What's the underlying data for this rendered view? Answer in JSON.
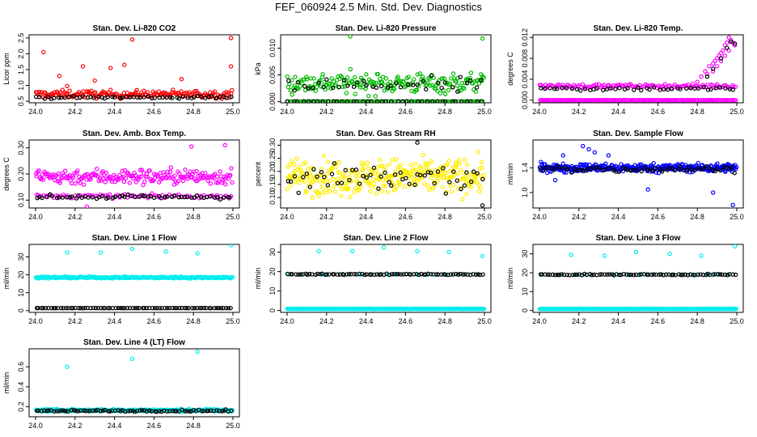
{
  "page_title": "FEF_060924  2.5 Min. Std. Dev. Diagnostics",
  "chart_data": [
    {
      "type": "scatter",
      "title": "Stan. Dev. Li-820 CO2",
      "ylabel": "Licor ppm",
      "xlim": [
        24.0,
        25.0
      ],
      "ylim": [
        0.45,
        2.6
      ],
      "xticks": [
        24.0,
        24.2,
        24.4,
        24.6,
        24.8,
        25.0
      ],
      "xtick_labels": [
        "24.0",
        "24.2",
        "24.4",
        "24.6",
        "24.8",
        "25.0"
      ],
      "yticks": [
        0.5,
        1.0,
        1.5,
        2.0,
        2.5
      ],
      "ytick_labels": [
        "0.5",
        "1.0",
        "1.5",
        "2.0",
        "2.5"
      ],
      "series": [
        {
          "name": "red",
          "color": "#ff0000",
          "base": 0.72,
          "spread": 0.2,
          "n": 170,
          "extra_x": [
            24.04,
            24.16,
            24.24,
            24.3,
            24.38,
            24.45,
            24.49,
            24.74,
            24.99,
            24.99,
            24.12
          ],
          "extra_y": [
            2.05,
            0.98,
            1.6,
            1.15,
            1.55,
            1.65,
            2.45,
            1.2,
            2.5,
            1.6,
            1.3
          ]
        },
        {
          "name": "black",
          "color": "#000000",
          "base": 0.62,
          "spread": 0.07,
          "n": 55,
          "extra_x": [],
          "extra_y": []
        }
      ]
    },
    {
      "type": "scatter",
      "title": "Stan. Dev. Li-820 Pressure",
      "ylabel": "kPa",
      "xlim": [
        24.0,
        25.0
      ],
      "ylim": [
        -0.0002,
        0.0125
      ],
      "xticks": [
        24.0,
        24.2,
        24.4,
        24.6,
        24.8,
        25.0
      ],
      "xtick_labels": [
        "24.0",
        "24.2",
        "24.4",
        "24.6",
        "24.8",
        "25.0"
      ],
      "yticks": [
        0.0,
        0.005,
        0.01
      ],
      "ytick_labels": [
        "0.000",
        "0.005",
        "0.010"
      ],
      "series": [
        {
          "name": "green",
          "color": "#00bb00",
          "base": 0.0035,
          "spread": 0.0032,
          "n": 200,
          "extra_x": [
            24.32,
            24.99
          ],
          "extra_y": [
            0.0122,
            0.0118
          ]
        },
        {
          "name": "green-floor",
          "color": "#00bb00",
          "base": 5e-05,
          "spread": 2e-05,
          "n": 90,
          "extra_x": [],
          "extra_y": []
        },
        {
          "name": "black",
          "color": "#000000",
          "base": 0.003,
          "spread": 0.0025,
          "n": 40,
          "extra_x": [],
          "extra_y": []
        },
        {
          "name": "black-floor",
          "color": "#000000",
          "base": 5e-05,
          "spread": 2e-05,
          "n": 40,
          "extra_x": [],
          "extra_y": []
        }
      ]
    },
    {
      "type": "scatter",
      "title": "Stan. Dev. Li-820 Temp.",
      "ylabel": "degrees C",
      "xlim": [
        24.0,
        25.0
      ],
      "ylim": [
        -0.0005,
        0.0125
      ],
      "xticks": [
        24.0,
        24.2,
        24.4,
        24.6,
        24.8,
        25.0
      ],
      "xtick_labels": [
        "24.0",
        "24.2",
        "24.4",
        "24.6",
        "24.8",
        "25.0"
      ],
      "yticks": [
        0.0,
        0.004,
        0.008,
        0.012
      ],
      "ytick_labels": [
        "0.000",
        "0.004",
        "0.008",
        "0.012"
      ],
      "series": [
        {
          "name": "magenta-floor",
          "color": "#ff00ff",
          "base": 0.0,
          "spread": 2e-05,
          "n": 150,
          "extra_x": [],
          "extra_y": []
        },
        {
          "name": "magenta-mid",
          "color": "#ff00ff",
          "base": 0.0027,
          "spread": 0.0006,
          "n": 120,
          "extra_x": [],
          "extra_y": []
        },
        {
          "name": "magenta-rise",
          "color": "#ff00ff",
          "base": 0.0,
          "spread": 0.0,
          "n": 0,
          "extra_x": [
            24.8,
            24.82,
            24.84,
            24.85,
            24.86,
            24.88,
            24.89,
            24.9,
            24.91,
            24.92,
            24.93,
            24.94,
            24.95,
            24.96,
            24.97,
            24.98,
            24.99,
            24.94,
            24.92,
            24.88,
            24.96,
            24.9
          ],
          "extra_y": [
            0.0035,
            0.0045,
            0.0055,
            0.005,
            0.0065,
            0.007,
            0.0075,
            0.008,
            0.0085,
            0.009,
            0.0095,
            0.0105,
            0.011,
            0.012,
            0.0115,
            0.011,
            0.0105,
            0.0085,
            0.0075,
            0.0055,
            0.0095,
            0.0065
          ]
        },
        {
          "name": "black",
          "color": "#000000",
          "base": 0.0022,
          "spread": 0.0006,
          "n": 45,
          "extra_x": [
            24.85,
            24.88,
            24.92,
            24.95,
            24.97,
            24.99
          ],
          "extra_y": [
            0.0045,
            0.006,
            0.008,
            0.01,
            0.0112,
            0.0108
          ]
        }
      ]
    },
    {
      "type": "scatter",
      "title": "Stan. Dev. Amb. Box Temp.",
      "ylabel": "degrees C",
      "xlim": [
        24.0,
        25.0
      ],
      "ylim": [
        0.07,
        0.33
      ],
      "xticks": [
        24.0,
        24.2,
        24.4,
        24.6,
        24.8,
        25.0
      ],
      "xtick_labels": [
        "24.0",
        "24.2",
        "24.4",
        "24.6",
        "24.8",
        "25.0"
      ],
      "yticks": [
        0.1,
        0.2,
        0.3
      ],
      "ytick_labels": [
        "0.10",
        "0.20",
        "0.30"
      ],
      "series": [
        {
          "name": "magenta-upper",
          "color": "#ff00ff",
          "base": 0.19,
          "spread": 0.05,
          "n": 210,
          "extra_x": [
            24.79,
            24.96,
            24.26
          ],
          "extra_y": [
            0.305,
            0.31,
            0.075
          ]
        },
        {
          "name": "magenta-lower",
          "color": "#ff00ff",
          "base": 0.115,
          "spread": 0.012,
          "n": 80,
          "extra_x": [],
          "extra_y": []
        },
        {
          "name": "black",
          "color": "#000000",
          "base": 0.112,
          "spread": 0.012,
          "n": 60,
          "extra_x": [],
          "extra_y": []
        }
      ]
    },
    {
      "type": "scatter",
      "title": "Stan. Dev. Gas Stream RH",
      "ylabel": "percent",
      "xlim": [
        24.0,
        25.0
      ],
      "ylim": [
        0.06,
        0.32
      ],
      "xticks": [
        24.0,
        24.2,
        24.4,
        24.6,
        24.8,
        25.0
      ],
      "xtick_labels": [
        "24.0",
        "24.2",
        "24.4",
        "24.6",
        "24.8",
        "25.0"
      ],
      "yticks": [
        0.1,
        0.15,
        0.2,
        0.25,
        0.3
      ],
      "ytick_labels": [
        "0.10",
        "0.15",
        "0.20",
        "0.25",
        "0.30"
      ],
      "series": [
        {
          "name": "yellow",
          "color": "#ffee00",
          "base": 0.18,
          "spread": 0.11,
          "n": 330,
          "extra_x": [],
          "extra_y": []
        },
        {
          "name": "black",
          "color": "#000000",
          "base": 0.17,
          "spread": 0.09,
          "n": 55,
          "extra_x": [
            24.66,
            24.99
          ],
          "extra_y": [
            0.31,
            0.07
          ]
        }
      ]
    },
    {
      "type": "scatter",
      "title": "Stan. Dev. Sample Flow",
      "ylabel": "ml/min",
      "xlim": [
        24.0,
        25.0
      ],
      "ylim": [
        0.75,
        1.85
      ],
      "xticks": [
        24.0,
        24.2,
        24.4,
        24.6,
        24.8,
        25.0
      ],
      "xtick_labels": [
        "24.0",
        "24.2",
        "24.4",
        "24.6",
        "24.8",
        "25.0"
      ],
      "yticks": [
        1.0,
        1.4
      ],
      "ytick_labels": [
        "1.0",
        "1.4"
      ],
      "series": [
        {
          "name": "blue",
          "color": "#0000ff",
          "base": 1.4,
          "spread": 0.11,
          "n": 320,
          "extra_x": [
            24.22,
            24.25,
            24.28,
            24.98,
            24.55,
            24.35,
            24.88,
            24.12,
            24.08
          ],
          "extra_y": [
            1.75,
            1.7,
            1.65,
            0.8,
            1.05,
            1.6,
            1.0,
            1.6,
            1.2
          ]
        },
        {
          "name": "black",
          "color": "#000000",
          "base": 1.38,
          "spread": 0.08,
          "n": 70,
          "extra_x": [],
          "extra_y": []
        }
      ]
    },
    {
      "type": "scatter",
      "title": "Stan. Dev. Line 1 Flow",
      "ylabel": "ml/min",
      "xlim": [
        24.0,
        25.0
      ],
      "ylim": [
        -1,
        37
      ],
      "xticks": [
        24.0,
        24.2,
        24.4,
        24.6,
        24.8,
        25.0
      ],
      "xtick_labels": [
        "24.0",
        "24.2",
        "24.4",
        "24.6",
        "24.8",
        "25.0"
      ],
      "yticks": [
        0,
        10,
        20,
        30
      ],
      "ytick_labels": [
        "0",
        "10",
        "20",
        "30"
      ],
      "series": [
        {
          "name": "cyan",
          "color": "#00eeee",
          "base": 18.5,
          "spread": 0.8,
          "n": 260,
          "extra_x": [
            24.16,
            24.33,
            24.49,
            24.66,
            24.82,
            24.99
          ],
          "extra_y": [
            32.5,
            32.5,
            34.5,
            33.0,
            32.0,
            36.5
          ]
        },
        {
          "name": "black",
          "color": "#000000",
          "base": 1.4,
          "spread": 0.1,
          "n": 80,
          "extra_x": [],
          "extra_y": []
        }
      ]
    },
    {
      "type": "scatter",
      "title": "Stan. Dev. Line 2 Flow",
      "ylabel": "ml/min",
      "xlim": [
        24.0,
        25.0
      ],
      "ylim": [
        -1,
        34
      ],
      "xticks": [
        24.0,
        24.2,
        24.4,
        24.6,
        24.8,
        25.0
      ],
      "xtick_labels": [
        "24.0",
        "24.2",
        "24.4",
        "24.6",
        "24.8",
        "25.0"
      ],
      "yticks": [
        0,
        10,
        20,
        30
      ],
      "ytick_labels": [
        "0",
        "10",
        "20",
        "30"
      ],
      "series": [
        {
          "name": "cyan-floor",
          "color": "#00eeee",
          "base": 0.8,
          "spread": 0.15,
          "n": 260,
          "extra_x": [],
          "extra_y": []
        },
        {
          "name": "cyan",
          "color": "#00eeee",
          "base": 18.5,
          "spread": 0.3,
          "n": 20,
          "extra_x": [
            24.16,
            24.33,
            24.49,
            24.66,
            24.82,
            24.99
          ],
          "extra_y": [
            30.5,
            30.5,
            32.5,
            30.5,
            30.0,
            28.0
          ]
        },
        {
          "name": "black",
          "color": "#000000",
          "base": 18.6,
          "spread": 0.5,
          "n": 80,
          "extra_x": [],
          "extra_y": []
        }
      ]
    },
    {
      "type": "scatter",
      "title": "Stan. Dev. Line 3 Flow",
      "ylabel": "ml/min",
      "xlim": [
        24.0,
        25.0
      ],
      "ylim": [
        -1,
        35
      ],
      "xticks": [
        24.0,
        24.2,
        24.4,
        24.6,
        24.8,
        25.0
      ],
      "xtick_labels": [
        "24.0",
        "24.2",
        "24.4",
        "24.6",
        "24.8",
        "25.0"
      ],
      "yticks": [
        0,
        10,
        20,
        30
      ],
      "ytick_labels": [
        "0",
        "10",
        "20",
        "30"
      ],
      "series": [
        {
          "name": "cyan-floor",
          "color": "#00eeee",
          "base": 0.8,
          "spread": 0.15,
          "n": 260,
          "extra_x": [],
          "extra_y": []
        },
        {
          "name": "cyan",
          "color": "#00eeee",
          "base": 19.0,
          "spread": 0.3,
          "n": 20,
          "extra_x": [
            24.16,
            24.33,
            24.49,
            24.66,
            24.82,
            24.99
          ],
          "extra_y": [
            29.5,
            29.0,
            31.0,
            30.0,
            29.0,
            34.0
          ]
        },
        {
          "name": "black",
          "color": "#000000",
          "base": 19.0,
          "spread": 0.5,
          "n": 80,
          "extra_x": [],
          "extra_y": []
        }
      ]
    },
    {
      "type": "scatter",
      "title": "Stan. Dev. Line 4 (LT) Flow",
      "ylabel": "ml/min",
      "xlim": [
        24.0,
        25.0
      ],
      "ylim": [
        0.1,
        0.78
      ],
      "xticks": [
        24.0,
        24.2,
        24.4,
        24.6,
        24.8,
        25.0
      ],
      "xtick_labels": [
        "24.0",
        "24.2",
        "24.4",
        "24.6",
        "24.8",
        "25.0"
      ],
      "yticks": [
        0.2,
        0.4,
        0.6
      ],
      "ytick_labels": [
        "0.2",
        "0.4",
        "0.6"
      ],
      "series": [
        {
          "name": "cyan",
          "color": "#00eeee",
          "base": 0.165,
          "spread": 0.02,
          "n": 260,
          "extra_x": [
            24.16,
            24.49,
            24.82
          ],
          "extra_y": [
            0.6,
            0.68,
            0.75
          ]
        },
        {
          "name": "black",
          "color": "#000000",
          "base": 0.16,
          "spread": 0.015,
          "n": 80,
          "extra_x": [],
          "extra_y": []
        }
      ]
    }
  ]
}
